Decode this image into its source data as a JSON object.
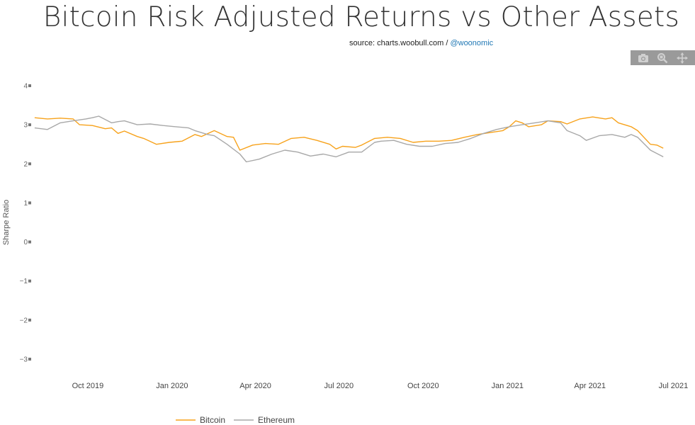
{
  "title": "Bitcoin Risk Adjusted Returns vs Other Assets",
  "source": {
    "prefix": "source: charts.woobull.com / ",
    "link": "@woonomic"
  },
  "modebar": [
    {
      "name": "camera-icon"
    },
    {
      "name": "zoom-icon"
    },
    {
      "name": "pan-icon"
    }
  ],
  "chart_data": {
    "type": "line",
    "title": "Bitcoin Risk Adjusted Returns vs Other Assets",
    "xlabel": "",
    "ylabel": "Sharpe Ratio",
    "ylim": [
      -3,
      4
    ],
    "yticks": [
      4,
      3,
      2,
      1,
      0,
      -1,
      -2,
      -3
    ],
    "xlim": [
      "2019-08-01",
      "2021-07-20"
    ],
    "xticks": [
      {
        "date": "2019-10-01",
        "label": "Oct 2019"
      },
      {
        "date": "2020-01-01",
        "label": "Jan 2020"
      },
      {
        "date": "2020-04-01",
        "label": "Apr 2020"
      },
      {
        "date": "2020-07-01",
        "label": "Jul 2020"
      },
      {
        "date": "2020-10-01",
        "label": "Oct 2020"
      },
      {
        "date": "2021-01-01",
        "label": "Jan 2021"
      },
      {
        "date": "2021-04-01",
        "label": "Apr 2021"
      },
      {
        "date": "2021-07-01",
        "label": "Jul 2021"
      }
    ],
    "grid": false,
    "legend": "bottom-left",
    "series": [
      {
        "name": "Bitcoin",
        "color": "#f7a21b",
        "points": [
          [
            "2019-08-04",
            3.18
          ],
          [
            "2019-08-18",
            3.15
          ],
          [
            "2019-09-01",
            3.17
          ],
          [
            "2019-09-15",
            3.15
          ],
          [
            "2019-09-22",
            3.0
          ],
          [
            "2019-10-06",
            2.98
          ],
          [
            "2019-10-20",
            2.9
          ],
          [
            "2019-10-27",
            2.92
          ],
          [
            "2019-11-03",
            2.78
          ],
          [
            "2019-11-10",
            2.84
          ],
          [
            "2019-11-24",
            2.7
          ],
          [
            "2019-12-01",
            2.65
          ],
          [
            "2019-12-15",
            2.5
          ],
          [
            "2019-12-29",
            2.55
          ],
          [
            "2020-01-12",
            2.58
          ],
          [
            "2020-01-26",
            2.75
          ],
          [
            "2020-02-02",
            2.7
          ],
          [
            "2020-02-16",
            2.85
          ],
          [
            "2020-03-01",
            2.7
          ],
          [
            "2020-03-08",
            2.68
          ],
          [
            "2020-03-15",
            2.35
          ],
          [
            "2020-03-29",
            2.48
          ],
          [
            "2020-04-12",
            2.52
          ],
          [
            "2020-04-26",
            2.5
          ],
          [
            "2020-05-10",
            2.65
          ],
          [
            "2020-05-24",
            2.68
          ],
          [
            "2020-06-07",
            2.6
          ],
          [
            "2020-06-21",
            2.5
          ],
          [
            "2020-06-28",
            2.38
          ],
          [
            "2020-07-05",
            2.45
          ],
          [
            "2020-07-19",
            2.42
          ],
          [
            "2020-07-26",
            2.48
          ],
          [
            "2020-08-09",
            2.65
          ],
          [
            "2020-08-23",
            2.68
          ],
          [
            "2020-09-06",
            2.65
          ],
          [
            "2020-09-20",
            2.55
          ],
          [
            "2020-10-04",
            2.58
          ],
          [
            "2020-10-18",
            2.58
          ],
          [
            "2020-11-01",
            2.6
          ],
          [
            "2020-11-15",
            2.68
          ],
          [
            "2020-11-29",
            2.75
          ],
          [
            "2020-12-13",
            2.8
          ],
          [
            "2020-12-27",
            2.85
          ],
          [
            "2021-01-03",
            2.95
          ],
          [
            "2021-01-10",
            3.1
          ],
          [
            "2021-01-17",
            3.05
          ],
          [
            "2021-01-24",
            2.95
          ],
          [
            "2021-02-07",
            3.0
          ],
          [
            "2021-02-14",
            3.1
          ],
          [
            "2021-02-28",
            3.08
          ],
          [
            "2021-03-07",
            3.02
          ],
          [
            "2021-03-21",
            3.15
          ],
          [
            "2021-04-04",
            3.2
          ],
          [
            "2021-04-18",
            3.15
          ],
          [
            "2021-04-25",
            3.18
          ],
          [
            "2021-05-02",
            3.05
          ],
          [
            "2021-05-16",
            2.95
          ],
          [
            "2021-05-23",
            2.85
          ],
          [
            "2021-06-06",
            2.5
          ],
          [
            "2021-06-13",
            2.48
          ],
          [
            "2021-06-20",
            2.4
          ]
        ]
      },
      {
        "name": "Ethereum",
        "color": "#a8a8a8",
        "points": [
          [
            "2019-08-04",
            2.92
          ],
          [
            "2019-08-18",
            2.88
          ],
          [
            "2019-09-01",
            3.05
          ],
          [
            "2019-09-15",
            3.1
          ],
          [
            "2019-09-29",
            3.15
          ],
          [
            "2019-10-06",
            3.18
          ],
          [
            "2019-10-13",
            3.22
          ],
          [
            "2019-10-27",
            3.05
          ],
          [
            "2019-11-03",
            3.08
          ],
          [
            "2019-11-10",
            3.1
          ],
          [
            "2019-11-24",
            3.0
          ],
          [
            "2019-12-08",
            3.02
          ],
          [
            "2019-12-22",
            2.98
          ],
          [
            "2020-01-05",
            2.95
          ],
          [
            "2020-01-19",
            2.92
          ],
          [
            "2020-01-26",
            2.85
          ],
          [
            "2020-02-09",
            2.75
          ],
          [
            "2020-02-16",
            2.72
          ],
          [
            "2020-03-01",
            2.5
          ],
          [
            "2020-03-15",
            2.25
          ],
          [
            "2020-03-22",
            2.05
          ],
          [
            "2020-04-05",
            2.12
          ],
          [
            "2020-04-19",
            2.25
          ],
          [
            "2020-05-03",
            2.35
          ],
          [
            "2020-05-17",
            2.3
          ],
          [
            "2020-05-31",
            2.2
          ],
          [
            "2020-06-14",
            2.25
          ],
          [
            "2020-06-28",
            2.18
          ],
          [
            "2020-07-12",
            2.3
          ],
          [
            "2020-07-26",
            2.3
          ],
          [
            "2020-08-09",
            2.55
          ],
          [
            "2020-08-16",
            2.58
          ],
          [
            "2020-08-30",
            2.6
          ],
          [
            "2020-09-13",
            2.5
          ],
          [
            "2020-09-27",
            2.45
          ],
          [
            "2020-10-11",
            2.45
          ],
          [
            "2020-10-25",
            2.52
          ],
          [
            "2020-11-08",
            2.55
          ],
          [
            "2020-11-22",
            2.65
          ],
          [
            "2020-12-06",
            2.78
          ],
          [
            "2020-12-20",
            2.88
          ],
          [
            "2021-01-03",
            2.95
          ],
          [
            "2021-01-17",
            3.0
          ],
          [
            "2021-01-31",
            3.05
          ],
          [
            "2021-02-14",
            3.1
          ],
          [
            "2021-02-28",
            3.05
          ],
          [
            "2021-03-07",
            2.85
          ],
          [
            "2021-03-21",
            2.72
          ],
          [
            "2021-03-28",
            2.6
          ],
          [
            "2021-04-11",
            2.72
          ],
          [
            "2021-04-25",
            2.75
          ],
          [
            "2021-05-09",
            2.68
          ],
          [
            "2021-05-16",
            2.75
          ],
          [
            "2021-05-23",
            2.68
          ],
          [
            "2021-06-06",
            2.35
          ],
          [
            "2021-06-20",
            2.18
          ]
        ]
      }
    ]
  }
}
